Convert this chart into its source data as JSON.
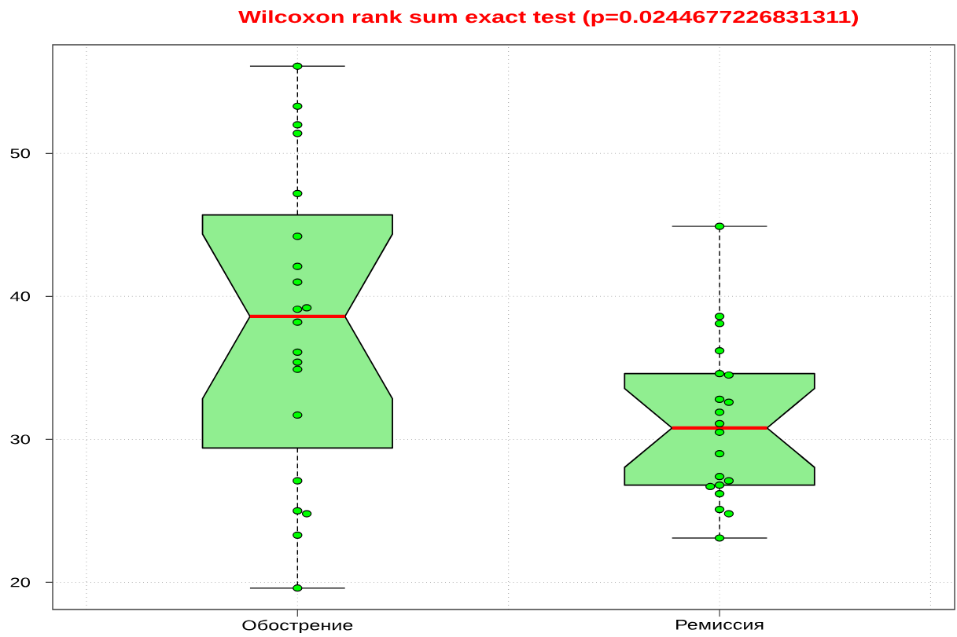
{
  "chart_data": {
    "type": "box",
    "title": "Wilcoxon rank sum exact test (p=0.0244677226831311)",
    "categories": [
      "Обострение",
      "Ремиссия"
    ],
    "ylim": [
      18.1,
      57.6
    ],
    "yticks": [
      20,
      30,
      40,
      50
    ],
    "grid": true,
    "series": [
      {
        "color": "#90ee90",
        "boxes": [
          {
            "low": 19.6,
            "q1": 29.4,
            "median": 38.6,
            "q3": 45.7,
            "high": 56.1
          },
          {
            "low": 23.1,
            "q1": 26.8,
            "median": 30.8,
            "q3": 34.6,
            "high": 44.9
          }
        ]
      },
      {
        "type": "scatter",
        "color": "#00ff00",
        "marker": "circle",
        "x": [
          "Обострение",
          "Обострение",
          "Обострение",
          "Обострение",
          "Обострение",
          "Обострение",
          "Обострение",
          "Обострение",
          "Обострение",
          "Обострение",
          "Обострение",
          "Обострение",
          "Обострение",
          "Обострение",
          "Обострение",
          "Обострение",
          "Обострение",
          "Обострение",
          "Обострение",
          "Обострение",
          "Ремиссия",
          "Ремиссия",
          "Ремиссия",
          "Ремиссия",
          "Ремиссия",
          "Ремиссия",
          "Ремиссия",
          "Ремиссия",
          "Ремиссия",
          "Ремиссия",
          "Ремиссия",
          "Ремиссия",
          "Ремиссия",
          "Ремиссия",
          "Ремиссия",
          "Ремиссия",
          "Ремиссия",
          "Ремиссия",
          "Ремиссия",
          "Ремиссия"
        ],
        "values": [
          27.1,
          47.2,
          31.7,
          34.9,
          51.4,
          38.2,
          19.6,
          25.0,
          41.0,
          36.1,
          52.0,
          39.1,
          39.2,
          23.3,
          24.8,
          56.1,
          42.1,
          44.2,
          35.4,
          53.3,
          38.6,
          38.1,
          26.8,
          27.1,
          34.6,
          32.8,
          30.5,
          26.2,
          32.6,
          25.1,
          23.1,
          31.9,
          24.8,
          26.7,
          34.5,
          31.1,
          27.4,
          29.0,
          36.2,
          44.9
        ]
      }
    ]
  }
}
